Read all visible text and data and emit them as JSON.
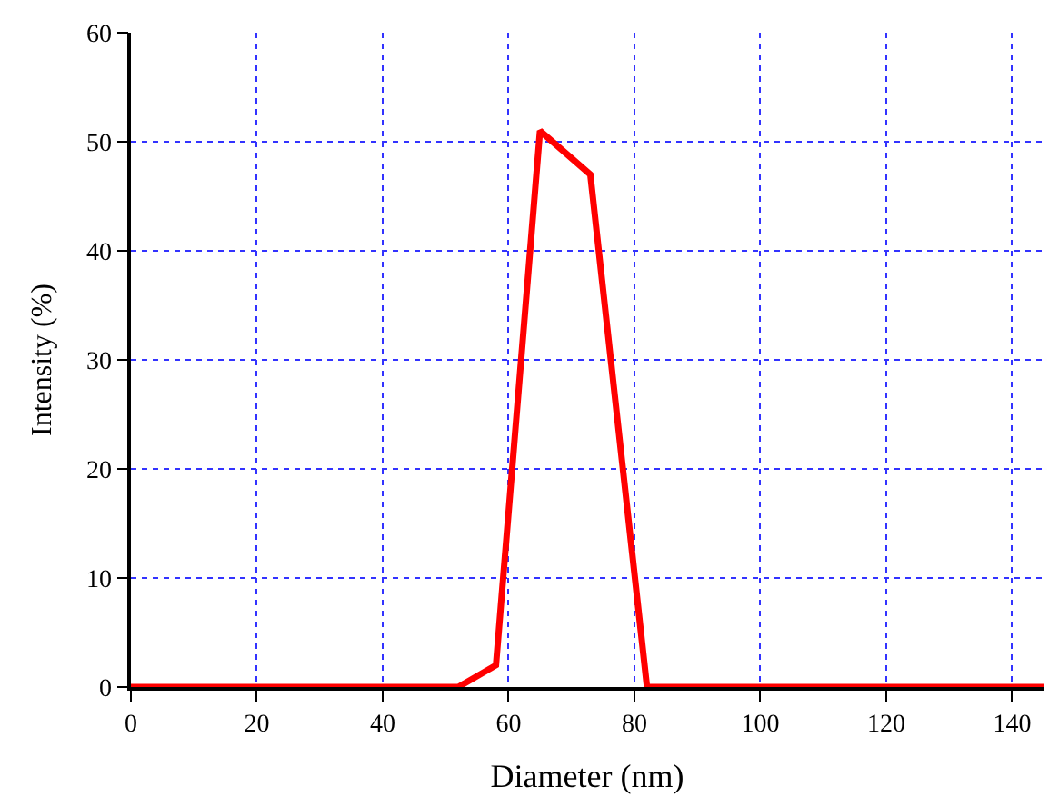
{
  "chart_data": {
    "type": "line",
    "xlabel": "Diameter (nm)",
    "ylabel": "Intensity (%)",
    "x": [
      0,
      52,
      58,
      65,
      73,
      82,
      145
    ],
    "series": [
      {
        "color": "#ff0000",
        "values": [
          0,
          0,
          2,
          51,
          47,
          0,
          0
        ]
      }
    ],
    "xlim": [
      0,
      145
    ],
    "xticks": [
      0,
      20,
      40,
      60,
      80,
      100,
      120,
      140
    ],
    "ylim": [
      0,
      60
    ],
    "yticks": [
      0,
      10,
      20,
      30,
      40,
      50,
      60
    ],
    "grid": true,
    "legend": false,
    "marker": "none",
    "line_style": "solid"
  }
}
